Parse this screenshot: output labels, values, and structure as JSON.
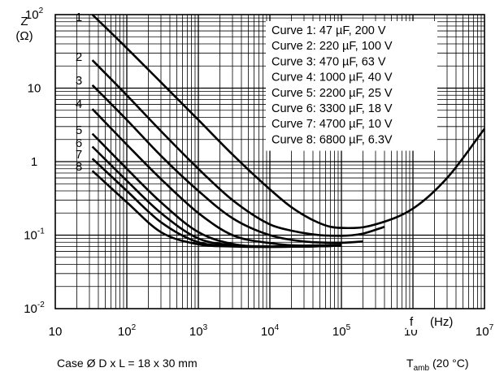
{
  "chart_data": {
    "type": "line",
    "xscale": "log",
    "yscale": "log",
    "xlim": [
      10,
      10000000
    ],
    "ylim": [
      0.01,
      100
    ],
    "grid": true,
    "y_axis_label": {
      "symbol": "Z",
      "unit": "(Ω)"
    },
    "x_axis_label": {
      "symbol": "f",
      "unit": "(Hz)"
    },
    "x_ticks": [
      {
        "base": "10",
        "exp": ""
      },
      {
        "base": "10",
        "exp": "2"
      },
      {
        "base": "10",
        "exp": "3"
      },
      {
        "base": "10",
        "exp": "4"
      },
      {
        "base": "10",
        "exp": "5"
      },
      {
        "base": "10",
        "exp": "6"
      },
      {
        "base": "10",
        "exp": "7"
      }
    ],
    "y_ticks": [
      {
        "base": "10",
        "exp": "2"
      },
      {
        "base": "10",
        "exp": ""
      },
      {
        "base": "1",
        "exp": ""
      },
      {
        "base": "10",
        "exp": "-1"
      },
      {
        "base": "10",
        "exp": "-2"
      }
    ],
    "legend_position": "top-right",
    "series": [
      {
        "name": "Curve 1: 47 µF, 200 V",
        "label": "1",
        "x": [
          33,
          100,
          300,
          1000,
          3000,
          10000,
          20000,
          40000,
          70000,
          150000,
          300000,
          1000000,
          3000000,
          10000000
        ],
        "y": [
          100,
          35,
          12,
          3.7,
          1.25,
          0.42,
          0.24,
          0.16,
          0.13,
          0.125,
          0.14,
          0.23,
          0.6,
          2.8
        ]
      },
      {
        "name": "Curve 2: 220 µF, 100 V",
        "label": "2",
        "x": [
          33,
          100,
          300,
          1000,
          3000,
          10000,
          20000,
          50000,
          100000,
          200000,
          400000
        ],
        "y": [
          24,
          8,
          2.6,
          0.8,
          0.3,
          0.14,
          0.115,
          0.1,
          0.098,
          0.105,
          0.13
        ]
      },
      {
        "name": "Curve 3: 470 µF, 63 V",
        "label": "3",
        "x": [
          33,
          100,
          300,
          1000,
          3000,
          10000,
          30000,
          100000,
          200000
        ],
        "y": [
          11,
          3.7,
          1.2,
          0.4,
          0.17,
          0.1,
          0.082,
          0.079,
          0.082
        ]
      },
      {
        "name": "Curve 4: 1000 µF, 40 V",
        "label": "4",
        "x": [
          33,
          100,
          300,
          1000,
          3000,
          10000,
          30000,
          100000
        ],
        "y": [
          5.2,
          1.7,
          0.58,
          0.2,
          0.1,
          0.078,
          0.072,
          0.074
        ]
      },
      {
        "name": "Curve 5: 2200 µF, 25 V",
        "label": "5",
        "x": [
          33,
          100,
          300,
          1000,
          3000,
          10000,
          30000,
          100000
        ],
        "y": [
          2.4,
          0.8,
          0.28,
          0.11,
          0.076,
          0.07,
          0.07,
          0.072
        ]
      },
      {
        "name": "Curve 6: 3300 µF, 18 V",
        "label": "6",
        "x": [
          33,
          100,
          300,
          1000,
          3000,
          10000,
          30000,
          100000
        ],
        "y": [
          1.6,
          0.55,
          0.2,
          0.09,
          0.073,
          0.07,
          0.07,
          0.072
        ]
      },
      {
        "name": "Curve 7: 4700 µF, 10 V",
        "label": "7",
        "x": [
          33,
          100,
          300,
          1000,
          3000,
          10000,
          30000,
          100000
        ],
        "y": [
          1.1,
          0.4,
          0.15,
          0.08,
          0.072,
          0.07,
          0.07,
          0.072
        ]
      },
      {
        "name": "Curve 8: 6800 µF, 6.3V",
        "label": "8",
        "x": [
          33,
          100,
          300,
          1000,
          3000,
          10000,
          30000,
          100000
        ],
        "y": [
          0.75,
          0.28,
          0.11,
          0.075,
          0.07,
          0.069,
          0.07,
          0.072
        ]
      }
    ]
  },
  "footer": {
    "case_text": "Case Ø D x L = 18 x 30 mm",
    "temp_symbol": "T",
    "temp_subscript": "amb",
    "temp_value": "(20 °C)"
  }
}
